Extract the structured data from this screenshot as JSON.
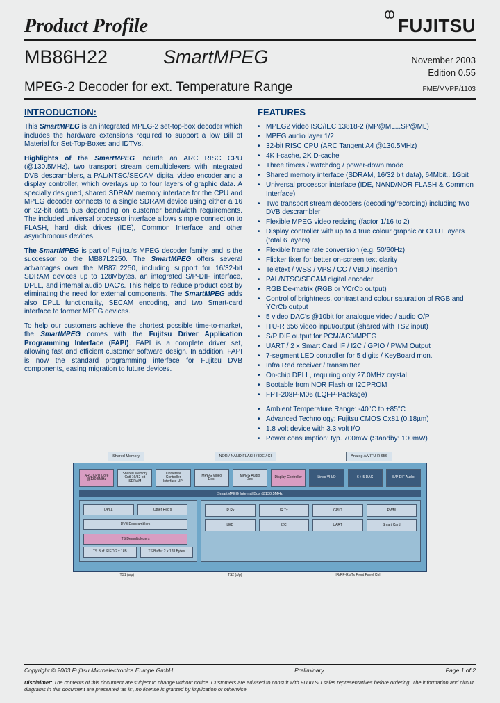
{
  "header": {
    "profile_label": "Product Profile",
    "brand": "FUJITSU"
  },
  "title": {
    "model": "MB86H22",
    "name": "SmartMPEG",
    "date": "November 2003",
    "edition": "Edition 0.55",
    "subtitle": "MPEG-2 Decoder for ext. Temperature Range",
    "docref": "FME/MVPP/1103"
  },
  "intro": {
    "heading": "INTRODUCTION:",
    "p1_a": "This ",
    "p1_b": "SmartMPEG",
    "p1_c": " is an integrated MPEG-2 set-top-box decoder which includes the hardware extensions required to support a low Bill of Material for Set-Top-Boxes and IDTVs.",
    "p2_a": "Highlights of the ",
    "p2_b": "SmartMPEG",
    "p2_c": " include an ARC RISC CPU (@130.5MHz), two transport stream demultiplexers with integrated DVB descramblers, a PAL/NTSC/SECAM digital video encoder and a display controller, which overlays up to four layers of graphic data. A specially designed, shared SDRAM memory interface for the CPU and MPEG decoder connects to a single SDRAM device using either a 16 or 32-bit data bus depending on customer bandwidth requirements. The included universal processor interface allows simple connection to FLASH, hard disk drives (IDE), Common Interface and other asynchronous devices.",
    "p3_a": "The ",
    "p3_b": "SmartMPEG",
    "p3_c": " is part of Fujitsu's MPEG decoder family, and is the successor to the MB87L2250. The ",
    "p3_d": "SmartMPEG",
    "p3_e": " offers several advantages over the MB87L2250, including support for 16/32-bit SDRAM devices up to 128Mbytes, an integrated S/P-DIF interface, DPLL, and internal audio DAC's. This helps to reduce product cost by eliminating the need for external components. The ",
    "p3_f": "SmartMPEG",
    "p3_g": " adds also DPLL functionality, SECAM encoding, and two Smart-card interface to former MPEG devices.",
    "p4_a": "To help our customers achieve the shortest possible time-to-market, the ",
    "p4_b": "SmartMPEG",
    "p4_c": " comes with the ",
    "p4_d": "Fujitsu Driver Application Programming Interface (FAPI)",
    "p4_e": ". FAPI is a complete driver set, allowing fast and efficient customer software design. In addition, FAPI is now the standard programming interface for Fujitsu DVB components, easing migration to future devices."
  },
  "features": {
    "heading": "FEATURES",
    "group1": [
      "MPEG2 video ISO/IEC 13818-2 (MP@ML...SP@ML)",
      "MPEG audio layer 1/2",
      "32-bit RISC CPU (ARC Tangent A4 @130.5MHz)",
      "4K I-cache, 2K D-cache",
      "Three timers / watchdog / power-down mode",
      "Shared memory interface (SDRAM, 16/32 bit data), 64Mbit...1Gbit",
      "Universal processor interface (IDE, NAND/NOR FLASH & Common Interface)",
      "Two transport stream decoders (decoding/recording) including two DVB descrambler",
      "Flexible MPEG video resizing (factor 1/16 to 2)",
      "Display controller with up to 4 true colour graphic or CLUT layers (total 6 layers)",
      "Flexible frame rate conversion (e.g. 50/60Hz)",
      "Flicker fixer for better on-screen text clarity",
      "Teletext / WSS / VPS / CC / VBID insertion",
      "PAL/NTSC/SECAM digital encoder",
      "RGB De-matrix (RGB or YCrCb output)",
      "Control of brightness, contrast and colour saturation of RGB and YCrCb output",
      "5 video DAC's @10bit for analogue video / audio O/P",
      "ITU-R 656 video input/output (shared with TS2 input)",
      "S/P DIF output for PCM/AC3/MPEG",
      "UART / 2 x Smart Card IF / I2C / GPIO / PWM Output",
      "7-segment LED controller for 5 digits / KeyBoard mon.",
      "Infra Red receiver / transmitter",
      "On-chip DPLL, requiring only 27.0MHz crystal",
      "Bootable from NOR Flash or I2CPROM",
      "FPT-208P-M06 (LQFP-Package)"
    ],
    "group2": [
      "Ambient Temperature Range: -40°C to +85°C",
      "Advanced Technology: Fujitsu CMOS Cx81 (0.18µm)",
      "1.8 volt device with 3.3 volt I/O",
      "Power consumption: typ. 700mW (Standby: 100mW)"
    ]
  },
  "diagram": {
    "top": [
      "Shared Memory",
      "NOR / NAND FLASH / IDE / CI",
      "Analog A/VITU-R 656"
    ],
    "row1": [
      "ARC CPU Core @130.5MHz",
      "Shared Memory Cntl 16/32-bit SDRAM",
      "Universal Controller Interface UPI",
      "MPEG Video Dec.",
      "MPEG Audio Dec.",
      "Display Controller",
      "Lines VI I/O",
      "6 + 5 DAC",
      "S/P-DIF Audio"
    ],
    "bus": "SmartMPEG Internal Bus @130.5MHz",
    "row2a": [
      "DPLL",
      "Other Reg's",
      "DVB Descramblers",
      "TS Demultiplexers"
    ],
    "row2b": [
      "IR Rx",
      "IR Tx",
      "GPIO",
      "PWM"
    ],
    "row2c": [
      "LED",
      "I2C",
      "UART",
      "Smart Card"
    ],
    "row_inner": [
      "TS Buff. FIFO 2 x 1kB",
      "TS Buffer 2 x 128 Bytes"
    ],
    "bottom": [
      "TS1 (s/p)",
      "TS2 (s/p)",
      "IR/RF-Rx/Tx Front Panel Ctrl"
    ]
  },
  "footer": {
    "copyright": "Copyright © 2003 Fujitsu Microelectronics Europe GmbH",
    "status": "Preliminary",
    "page": "Page 1 of 2",
    "disclaimer_label": "Disclaimer:",
    "disclaimer_text": "The contents of this document are subject to change without notice. Customers are advised to consult with FUJITSU sales representatives before ordering. The information and circuit diagrams in this document are presented 'as is', no license is granted by implication or otherwise."
  },
  "colors": {
    "page_bg": "#eceded",
    "text_body": "#003570",
    "text_heading": "#1a1a1a",
    "diagram_main": "#6fa7c9",
    "diagram_box": "#cad7e4",
    "diagram_pink": "#d89dc2",
    "diagram_dark": "#3a5a7c",
    "diagram_inner": "#9bbfd6"
  }
}
